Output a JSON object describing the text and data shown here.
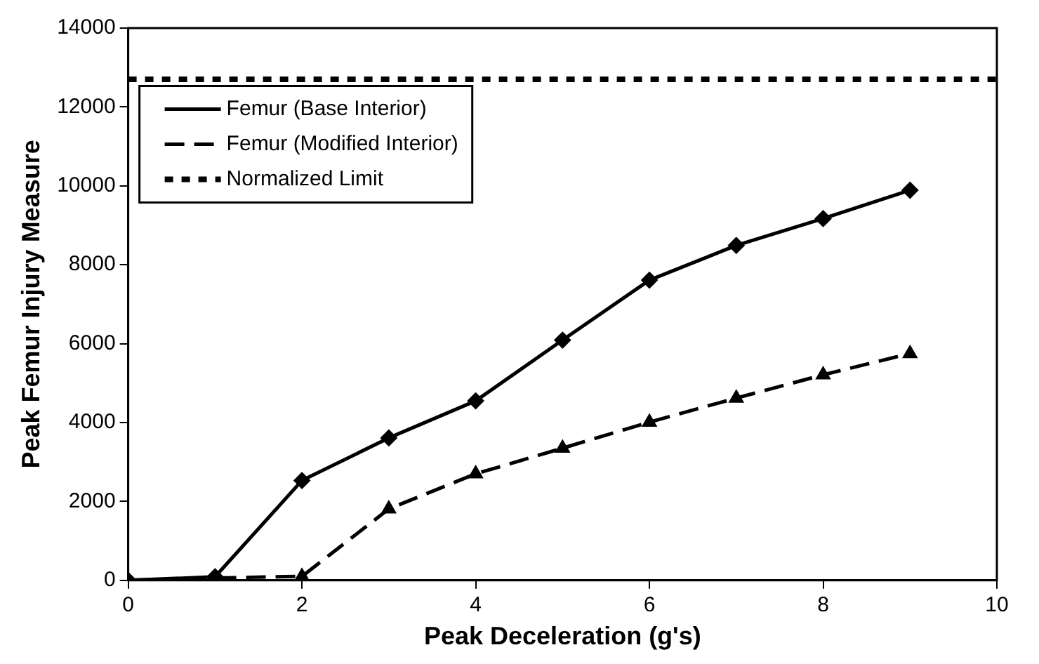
{
  "chart_data": {
    "type": "line",
    "xlabel": "Peak Deceleration (g's)",
    "ylabel": "Peak Femur Injury Measure",
    "x": [
      0,
      1,
      2,
      3,
      4,
      5,
      6,
      7,
      8,
      9
    ],
    "series": [
      {
        "name": "Femur (Base Interior)",
        "color": "#000000",
        "marker": "diamond",
        "line_style": "solid",
        "values": [
          0,
          90,
          2530,
          3610,
          4550,
          6090,
          7610,
          8490,
          9170,
          9890
        ]
      },
      {
        "name": "Femur (Modified Interior)",
        "color": "#000000",
        "marker": "triangle",
        "line_style": "dashed",
        "values": [
          0,
          60,
          100,
          1810,
          2700,
          3350,
          4010,
          4620,
          5210,
          5750
        ]
      },
      {
        "name": "Normalized Limit",
        "color": "#000000",
        "marker": "none",
        "line_style": "dotted",
        "x": [
          0,
          10
        ],
        "values": [
          12700,
          12700
        ]
      }
    ],
    "xlim": [
      0,
      10
    ],
    "xticks": [
      0,
      2,
      4,
      6,
      8,
      10
    ],
    "ylim": [
      0,
      14000
    ],
    "yticks": [
      0,
      2000,
      4000,
      6000,
      8000,
      10000,
      12000,
      14000
    ],
    "grid": false,
    "legend": "top left"
  }
}
